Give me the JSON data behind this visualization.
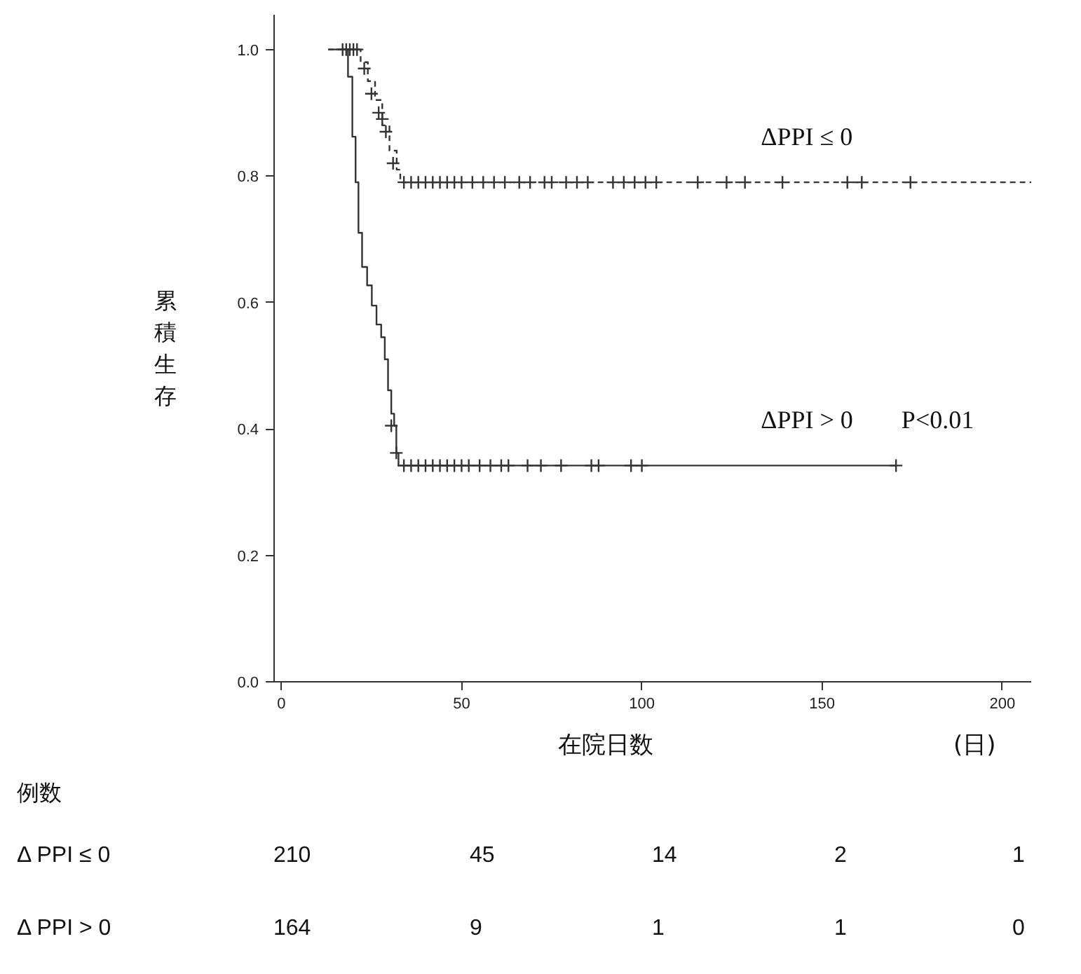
{
  "chart_data": {
    "type": "step",
    "xlabel": "在院日数",
    "ylabel": "累積生存",
    "xlim": [
      -2,
      208
    ],
    "ylim": [
      0,
      1.055
    ],
    "xticks": [
      0,
      50,
      100,
      150,
      200
    ],
    "yticks": [
      {
        "value": 0,
        "label": "0.0"
      },
      {
        "value": 0.2,
        "label": "0.2"
      },
      {
        "value": 0.4,
        "label": "0.4"
      },
      {
        "value": 0.6,
        "label": "0.6"
      },
      {
        "value": 0.8,
        "label": "0.8"
      },
      {
        "value": 1.0,
        "label": "1.0"
      }
    ],
    "grid": false,
    "series": [
      {
        "name": "ΔPPI ≤ 0",
        "color": "#333333",
        "line_style": "dashed",
        "x": [
          13,
          21,
          22,
          24,
          26,
          28,
          30,
          32,
          33,
          208
        ],
        "values": [
          1.0,
          1.0,
          0.98,
          0.95,
          0.92,
          0.88,
          0.84,
          0.81,
          0.79,
          0.79
        ]
      },
      {
        "name": "ΔPPI > 0",
        "color": "#333333",
        "line_style": "solid",
        "x": [
          13,
          18.5,
          19.7,
          20.6,
          21.4,
          22.4,
          23.8,
          25.1,
          26.4,
          27.7,
          28.7,
          29.6,
          30.5,
          31.3,
          31.9,
          32.5,
          170.5
        ],
        "values": [
          1.0,
          0.957,
          0.862,
          0.79,
          0.71,
          0.656,
          0.627,
          0.595,
          0.565,
          0.545,
          0.51,
          0.461,
          0.424,
          0.405,
          0.362,
          0.342,
          0.342
        ]
      },
      {
        "type": "scatter",
        "marker": "cross",
        "color": "#333333",
        "x": [
          17,
          18,
          19,
          20,
          21,
          23,
          25,
          27,
          28,
          29,
          31,
          34,
          36,
          38,
          40,
          42,
          44,
          46,
          48,
          50,
          53,
          56,
          59,
          62,
          66,
          69,
          73,
          75,
          79,
          82,
          85,
          92,
          95,
          98,
          101,
          104,
          115.5,
          123.5,
          128.6,
          139,
          157,
          161,
          174.5
        ],
        "values": [
          1.0,
          1.0,
          1.0,
          1.0,
          1.0,
          0.97,
          0.93,
          0.9,
          0.89,
          0.87,
          0.82,
          0.79,
          0.79,
          0.79,
          0.79,
          0.79,
          0.79,
          0.79,
          0.79,
          0.79,
          0.79,
          0.79,
          0.79,
          0.79,
          0.79,
          0.79,
          0.79,
          0.79,
          0.79,
          0.79,
          0.79,
          0.79,
          0.79,
          0.79,
          0.79,
          0.79,
          0.79,
          0.79,
          0.79,
          0.79,
          0.79,
          0.79,
          0.79
        ]
      },
      {
        "type": "scatter",
        "marker": "cross",
        "color": "#333333",
        "x": [
          30.5,
          31.9,
          34,
          36,
          38,
          40,
          42,
          44,
          46,
          48,
          50,
          52,
          55,
          58,
          61,
          63,
          68.3,
          72,
          77.6,
          86,
          88,
          97,
          100,
          170.5
        ],
        "values": [
          0.405,
          0.362,
          0.342,
          0.342,
          0.342,
          0.342,
          0.342,
          0.342,
          0.342,
          0.342,
          0.342,
          0.342,
          0.342,
          0.342,
          0.342,
          0.342,
          0.342,
          0.342,
          0.342,
          0.342,
          0.342,
          0.342,
          0.342,
          0.342
        ]
      }
    ],
    "annotations": [
      "P<0.01",
      "(日)",
      "例数",
      "Δ PPI ≤ 0",
      "210",
      "45",
      "14",
      "2",
      "1",
      "Δ PPI > 0",
      "164",
      "9",
      "1",
      "1",
      "0"
    ]
  }
}
